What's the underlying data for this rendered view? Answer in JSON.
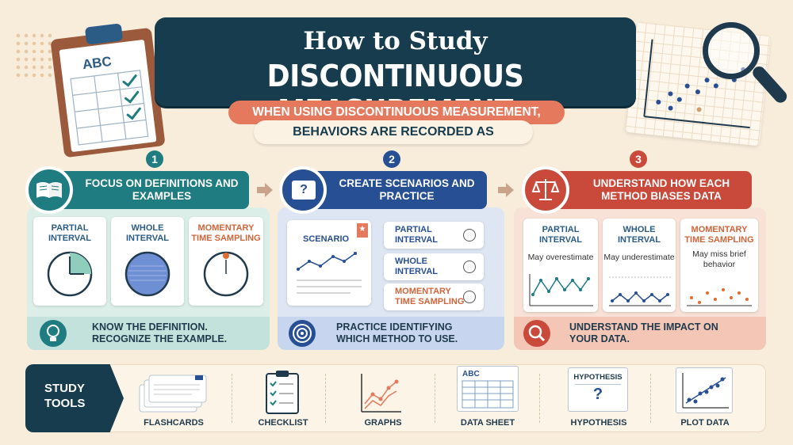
{
  "title": {
    "line1": "How to Study",
    "line2": "DISCONTINUOUS MEASUREMENT",
    "subtitle1": "WHEN USING DISCONTINUOUS MEASUREMENT,",
    "subtitle2": "BEHAVIORS ARE RECORDED AS"
  },
  "decor": {
    "clipboard_text": "ABC"
  },
  "steps": [
    {
      "number": "1",
      "heading": "FOCUS ON DEFINITIONS AND EXAMPLES",
      "cards": [
        {
          "title": "PARTIAL INTERVAL"
        },
        {
          "title": "WHOLE INTERVAL"
        },
        {
          "title": "MOMENTARY TIME SAMPLING"
        }
      ],
      "footer": "KNOW THE DEFINITION. RECOGNIZE THE EXAMPLE."
    },
    {
      "number": "2",
      "heading": "CREATE SCENARIOS AND PRACTICE",
      "icon_text": "?",
      "scenario_label": "SCENARIO",
      "options": [
        {
          "label": "PARTIAL INTERVAL"
        },
        {
          "label": "WHOLE INTERVAL"
        },
        {
          "label": "MOMENTARY TIME SAMPLING"
        }
      ],
      "footer": "PRACTICE IDENTIFYING WHICH METHOD TO USE."
    },
    {
      "number": "3",
      "heading": "UNDERSTAND HOW EACH METHOD BIASES DATA",
      "cards": [
        {
          "title": "PARTIAL INTERVAL",
          "note": "May overestimate"
        },
        {
          "title": "WHOLE INTERVAL",
          "note": "May underestimate"
        },
        {
          "title": "MOMENTARY TIME SAMPLING",
          "note": "May miss brief behavior"
        }
      ],
      "footer": "UNDERSTAND THE IMPACT ON YOUR DATA."
    }
  ],
  "study_tools": {
    "label": "STUDY TOOLS",
    "items": [
      {
        "label": "FLASHCARDS",
        "icon": "flashcards-icon"
      },
      {
        "label": "CHECKLIST",
        "icon": "checklist-icon"
      },
      {
        "label": "GRAPHS",
        "icon": "graphs-icon"
      },
      {
        "label": "DATA SHEET",
        "icon": "data-sheet-icon",
        "icon_text": "ABC"
      },
      {
        "label": "HYPOTHESIS",
        "icon": "hypothesis-icon",
        "icon_text": "HYPOTHESIS",
        "icon_mark": "?"
      },
      {
        "label": "PLOT DATA",
        "icon": "plot-data-icon"
      }
    ]
  },
  "colors": {
    "navy": "#173c4e",
    "teal": "#1f7c80",
    "blue": "#274f94",
    "red": "#c9493a",
    "orange": "#e5795d",
    "background": "#f8ecdb"
  }
}
